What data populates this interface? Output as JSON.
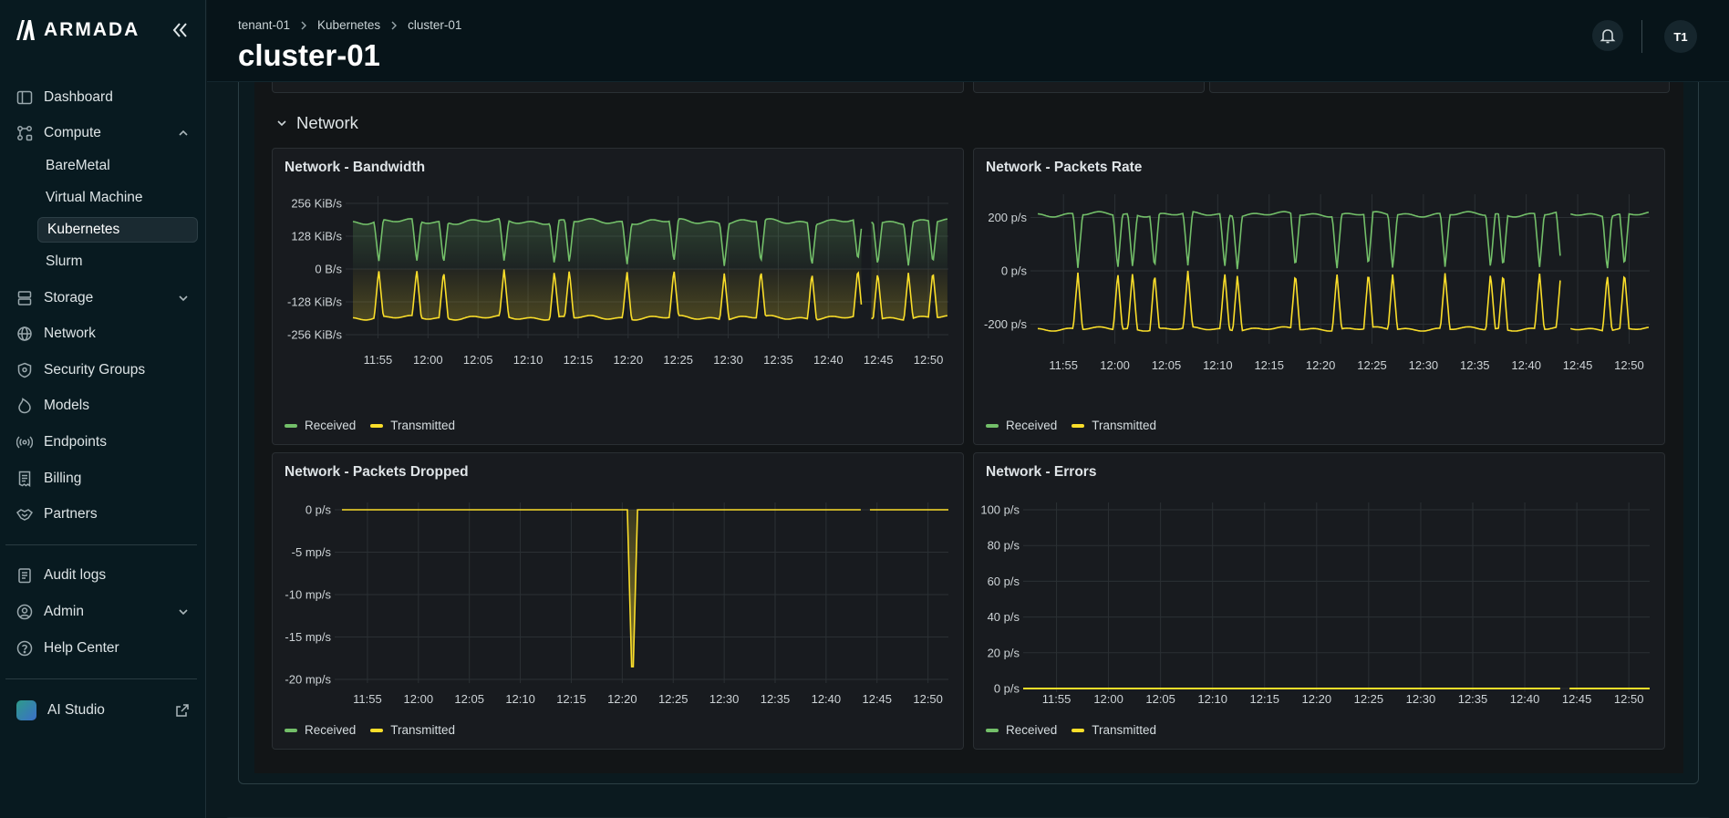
{
  "brand": {
    "name": "ARMADA"
  },
  "nav": {
    "dashboard": "Dashboard",
    "compute": "Compute",
    "compute_items": [
      "BareMetal",
      "Virtual Machine",
      "Kubernetes",
      "Slurm"
    ],
    "storage": "Storage",
    "network": "Network",
    "security_groups": "Security Groups",
    "models": "Models",
    "endpoints": "Endpoints",
    "billing": "Billing",
    "partners": "Partners",
    "audit_logs": "Audit logs",
    "admin": "Admin",
    "help_center": "Help Center",
    "ai_studio": "AI Studio",
    "active_item": "Kubernetes"
  },
  "header": {
    "breadcrumb": [
      "tenant-01",
      "Kubernetes",
      "cluster-01"
    ],
    "title": "cluster-01",
    "avatar_initials": "T1"
  },
  "section": {
    "title": "Network"
  },
  "legend": {
    "received": "Received",
    "transmitted": "Transmitted"
  },
  "colors": {
    "received": "#73bf69",
    "transmitted": "#fade2a",
    "bg": "#0b1a1f",
    "panel": "#181b1f"
  },
  "time_ticks": [
    "11:55",
    "12:00",
    "12:05",
    "12:10",
    "12:15",
    "12:20",
    "12:25",
    "12:30",
    "12:35",
    "12:40",
    "12:45",
    "12:50"
  ],
  "chart_data": [
    {
      "type": "area",
      "title": "Network - Bandwidth",
      "y_ticks": [
        "256 KiB/s",
        "128 KiB/s",
        "0 B/s",
        "-128 KiB/s",
        "-256 KiB/s"
      ],
      "ylim": [
        -256,
        256
      ],
      "unit": "KiB/s",
      "series": [
        {
          "name": "Received",
          "baseline": 180,
          "dip": 20,
          "dip_times": [
            "11:52",
            "11:54",
            "11:59",
            "12:02",
            "12:11",
            "12:16",
            "12:19",
            "12:26",
            "12:33",
            "12:37",
            "12:41",
            "12:43",
            "12:45",
            "12:47",
            "12:49"
          ]
        },
        {
          "name": "Transmitted",
          "baseline": -185,
          "peak": -5,
          "dip_times": [
            "11:52",
            "11:54",
            "11:59",
            "12:02",
            "12:11",
            "12:16",
            "12:19",
            "12:26",
            "12:33",
            "12:37",
            "12:41",
            "12:43",
            "12:45",
            "12:47",
            "12:49"
          ]
        }
      ],
      "gap": [
        "12:43",
        "12:44"
      ]
    },
    {
      "type": "area",
      "title": "Network - Packets Rate",
      "y_ticks": [
        "200 p/s",
        "0 p/s",
        "-200 p/s"
      ],
      "ylim": [
        -260,
        260
      ],
      "unit": "p/s",
      "series": [
        {
          "name": "Received",
          "baseline": 215,
          "dip": 10
        },
        {
          "name": "Transmitted",
          "baseline": -215,
          "peak": -5
        }
      ],
      "gap": [
        "12:43",
        "12:44"
      ]
    },
    {
      "type": "area",
      "title": "Network - Packets Dropped",
      "y_ticks": [
        "0 p/s",
        "-5 mp/s",
        "-10 mp/s",
        "-15 mp/s",
        "-20 mp/s"
      ],
      "ylim": [
        -20,
        0
      ],
      "unit": "mp/s",
      "series": [
        {
          "name": "Received",
          "values": "0"
        },
        {
          "name": "Transmitted",
          "baseline": 0,
          "spike_time": "12:21",
          "spike_value": -18.5
        }
      ],
      "gap": [
        "12:43",
        "12:44"
      ]
    },
    {
      "type": "line",
      "title": "Network - Errors",
      "y_ticks": [
        "100 p/s",
        "80 p/s",
        "60 p/s",
        "40 p/s",
        "20 p/s",
        "0 p/s"
      ],
      "ylim": [
        0,
        100
      ],
      "unit": "p/s",
      "series": [
        {
          "name": "Received",
          "values": "0"
        },
        {
          "name": "Transmitted",
          "values": "0"
        }
      ],
      "gap": [
        "12:43",
        "12:44"
      ]
    }
  ]
}
